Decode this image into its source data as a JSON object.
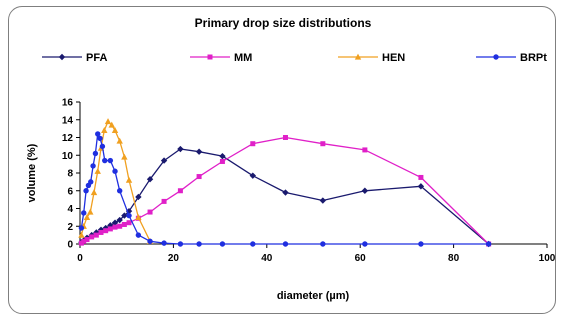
{
  "chart_data": {
    "type": "line",
    "title": "Primary drop size distributions",
    "xlabel": "diameter (µm)",
    "ylabel": "volume (%)",
    "xlim": [
      0,
      100
    ],
    "ylim": [
      0,
      16
    ],
    "xticks": [
      0,
      20,
      40,
      60,
      80,
      100
    ],
    "yticks": [
      0,
      2,
      4,
      6,
      8,
      10,
      12,
      14,
      16
    ],
    "grid": false,
    "legend_position": "top",
    "series": [
      {
        "name": "PFA",
        "color": "#1a1a6e",
        "marker": "diamond",
        "x": [
          0.3,
          0.8,
          1.5,
          2.5,
          3.5,
          4.5,
          5.5,
          6.5,
          7.5,
          8.5,
          9.5,
          10.5,
          12.5,
          15,
          18,
          21.5,
          25.5,
          30.5,
          37,
          44,
          52,
          61,
          73,
          87.5
        ],
        "y": [
          0.2,
          0.4,
          0.7,
          1.0,
          1.3,
          1.6,
          1.8,
          2.1,
          2.4,
          2.7,
          3.2,
          3.7,
          5.3,
          7.3,
          9.4,
          10.7,
          10.4,
          9.9,
          7.7,
          5.8,
          4.9,
          6.0,
          6.5,
          0.0
        ]
      },
      {
        "name": "MM",
        "color": "#e020c8",
        "marker": "square",
        "x": [
          0.3,
          0.8,
          1.5,
          2.5,
          3.5,
          4.5,
          5.5,
          6.5,
          7.5,
          8.5,
          9.5,
          10.5,
          12.5,
          15,
          18,
          21.5,
          25.5,
          30.5,
          37,
          44,
          52,
          61,
          73,
          87.5
        ],
        "y": [
          0.1,
          0.3,
          0.5,
          0.8,
          1.0,
          1.3,
          1.5,
          1.7,
          1.9,
          2.0,
          2.2,
          2.4,
          2.9,
          3.6,
          4.8,
          6.0,
          7.6,
          9.3,
          11.3,
          12.0,
          11.3,
          10.6,
          7.5,
          0.0
        ]
      },
      {
        "name": "HEN",
        "color": "#f0a020",
        "marker": "triangle",
        "x": [
          0.3,
          0.8,
          1.5,
          2.2,
          3.0,
          3.8,
          4.5,
          5.2,
          6.0,
          6.8,
          7.5,
          8.5,
          9.5,
          10.5,
          12.5,
          15
        ],
        "y": [
          1.0,
          2.0,
          3.0,
          3.6,
          5.8,
          8.2,
          10.8,
          12.8,
          13.8,
          13.4,
          12.8,
          11.6,
          9.8,
          7.2,
          3.0,
          0.3
        ]
      },
      {
        "name": "BRPt",
        "color": "#1f2fe0",
        "marker": "circle",
        "x": [
          0.3,
          0.8,
          1.3,
          1.8,
          2.3,
          2.8,
          3.3,
          3.8,
          4.3,
          4.8,
          5.3,
          6.5,
          7.5,
          8.5,
          10.5,
          12.5,
          15,
          18,
          21.5,
          25.5,
          30.5,
          37,
          44,
          52,
          61,
          73,
          87.5
        ],
        "y": [
          1.8,
          3.5,
          6.0,
          6.6,
          7.0,
          8.8,
          10.2,
          12.4,
          11.9,
          11.0,
          9.4,
          9.4,
          8.2,
          6.0,
          3.2,
          1.0,
          0.3,
          0.1,
          0.0,
          0.0,
          0.0,
          0.0,
          0.0,
          0.0,
          0.0,
          0.0,
          0.0
        ]
      }
    ]
  }
}
